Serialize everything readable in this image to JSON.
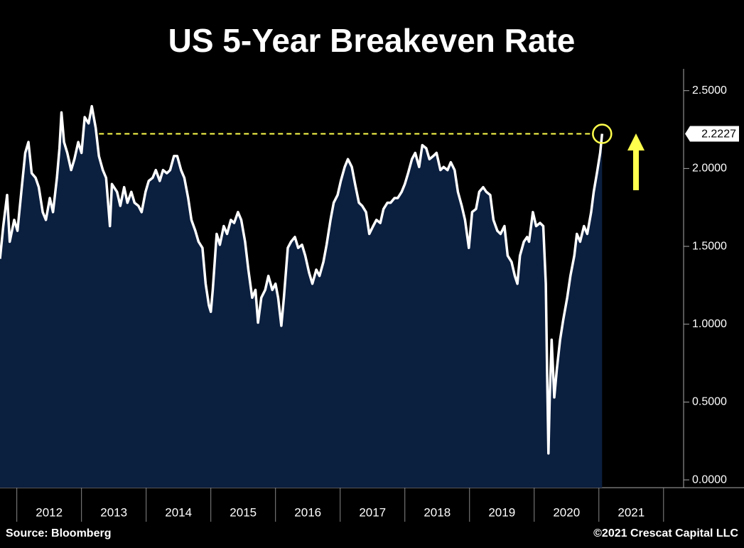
{
  "chart_data": {
    "type": "area",
    "title": "US 5-Year Breakeven Rate",
    "source": "Source: Bloomberg",
    "copyright": "©2021 Crescat Capital LLC",
    "series": [
      {
        "name": "US 5-Year Breakeven Rate",
        "color": "#ffffff",
        "fill_color": "#0b1f3f",
        "x": [
          2011.74,
          2011.79,
          2011.85,
          2011.89,
          2011.96,
          2012.01,
          2012.07,
          2012.13,
          2012.18,
          2012.23,
          2012.29,
          2012.34,
          2012.4,
          2012.45,
          2012.51,
          2012.56,
          2012.62,
          2012.66,
          2012.69,
          2012.73,
          2012.78,
          2012.84,
          2012.89,
          2012.95,
          2013.0,
          2013.05,
          2013.11,
          2013.16,
          2013.22,
          2013.27,
          2013.33,
          2013.38,
          2013.44,
          2013.47,
          2013.55,
          2013.6,
          2013.66,
          2013.71,
          2013.77,
          2013.82,
          2013.88,
          2013.93,
          2013.99,
          2014.04,
          2014.1,
          2014.15,
          2014.21,
          2014.26,
          2014.32,
          2014.37,
          2014.43,
          2014.48,
          2014.54,
          2014.59,
          2014.65,
          2014.7,
          2014.76,
          2014.81,
          2014.87,
          2014.92,
          2014.97,
          2015.0,
          2015.03,
          2015.09,
          2015.14,
          2015.2,
          2015.25,
          2015.31,
          2015.36,
          2015.42,
          2015.47,
          2015.53,
          2015.58,
          2015.64,
          2015.69,
          2015.73,
          2015.78,
          2015.84,
          2015.89,
          2015.95,
          2016.0,
          2016.04,
          2016.09,
          2016.13,
          2016.19,
          2016.24,
          2016.3,
          2016.35,
          2016.41,
          2016.46,
          2016.52,
          2016.57,
          2016.63,
          2016.68,
          2016.74,
          2016.79,
          2016.85,
          2016.9,
          2016.96,
          2017.01,
          2017.07,
          2017.12,
          2017.18,
          2017.23,
          2017.29,
          2017.34,
          2017.4,
          2017.45,
          2017.51,
          2017.56,
          2017.62,
          2017.67,
          2017.73,
          2017.78,
          2017.84,
          2017.89,
          2017.95,
          2018.0,
          2018.05,
          2018.11,
          2018.16,
          2018.22,
          2018.27,
          2018.33,
          2018.38,
          2018.44,
          2018.49,
          2018.55,
          2018.6,
          2018.66,
          2018.71,
          2018.77,
          2018.82,
          2018.88,
          2018.93,
          2018.99,
          2019.04,
          2019.1,
          2019.15,
          2019.21,
          2019.26,
          2019.32,
          2019.37,
          2019.43,
          2019.48,
          2019.54,
          2019.59,
          2019.65,
          2019.7,
          2019.74,
          2019.78,
          2019.84,
          2019.89,
          2019.92,
          2019.98,
          2020.03,
          2020.09,
          2020.14,
          2020.18,
          2020.2,
          2020.22,
          2020.24,
          2020.27,
          2020.31,
          2020.35,
          2020.4,
          2020.45,
          2020.51,
          2020.56,
          2020.62,
          2020.66,
          2020.71,
          2020.77,
          2020.82,
          2020.88,
          2020.92,
          2020.97,
          2021.02,
          2021.05
        ],
        "values": [
          1.42,
          1.63,
          1.83,
          1.53,
          1.67,
          1.6,
          1.85,
          2.1,
          2.17,
          1.97,
          1.94,
          1.88,
          1.72,
          1.67,
          1.81,
          1.72,
          1.94,
          2.13,
          2.36,
          2.17,
          2.1,
          1.99,
          2.06,
          2.17,
          2.1,
          2.33,
          2.29,
          2.4,
          2.26,
          2.08,
          1.99,
          1.94,
          1.63,
          1.9,
          1.85,
          1.76,
          1.88,
          1.78,
          1.85,
          1.78,
          1.76,
          1.72,
          1.85,
          1.92,
          1.94,
          1.99,
          1.92,
          1.99,
          1.97,
          1.99,
          2.08,
          2.08,
          1.99,
          1.94,
          1.81,
          1.67,
          1.6,
          1.53,
          1.49,
          1.26,
          1.12,
          1.08,
          1.22,
          1.58,
          1.51,
          1.63,
          1.58,
          1.67,
          1.65,
          1.72,
          1.67,
          1.53,
          1.35,
          1.17,
          1.22,
          1.01,
          1.17,
          1.22,
          1.31,
          1.22,
          1.26,
          1.17,
          0.99,
          1.17,
          1.49,
          1.53,
          1.56,
          1.49,
          1.51,
          1.44,
          1.33,
          1.26,
          1.35,
          1.31,
          1.4,
          1.51,
          1.67,
          1.78,
          1.83,
          1.92,
          2.01,
          2.06,
          2.01,
          1.9,
          1.78,
          1.76,
          1.72,
          1.58,
          1.63,
          1.67,
          1.65,
          1.74,
          1.78,
          1.78,
          1.81,
          1.81,
          1.85,
          1.9,
          1.97,
          2.06,
          2.1,
          2.01,
          2.15,
          2.13,
          2.06,
          2.08,
          2.1,
          1.99,
          2.01,
          1.99,
          2.04,
          1.99,
          1.85,
          1.76,
          1.67,
          1.49,
          1.72,
          1.74,
          1.85,
          1.88,
          1.85,
          1.83,
          1.67,
          1.6,
          1.58,
          1.63,
          1.44,
          1.4,
          1.31,
          1.26,
          1.44,
          1.53,
          1.56,
          1.53,
          1.72,
          1.63,
          1.65,
          1.63,
          1.26,
          0.67,
          0.17,
          0.53,
          0.9,
          0.53,
          0.71,
          0.9,
          1.03,
          1.17,
          1.31,
          1.44,
          1.58,
          1.53,
          1.63,
          1.58,
          1.72,
          1.85,
          1.97,
          2.1,
          2.2227
        ]
      }
    ],
    "reference_line_start": 2013.27,
    "highlight_color": "#ffff4d",
    "xlim": [
      2011.74,
      2022.31
    ],
    "xticks": [
      2012,
      2013,
      2014,
      2015,
      2016,
      2017,
      2018,
      2019,
      2020,
      2021
    ],
    "ylim": [
      -0.05,
      2.64
    ],
    "yticks": [
      {
        "value": 0,
        "label": "0.0000"
      },
      {
        "value": 0.5,
        "label": "0.5000"
      },
      {
        "value": 1,
        "label": "1.0000"
      },
      {
        "value": 1.5,
        "label": "1.5000"
      },
      {
        "value": 2,
        "label": "2.0000"
      },
      {
        "value": 2.5,
        "label": "2.5000"
      }
    ]
  }
}
